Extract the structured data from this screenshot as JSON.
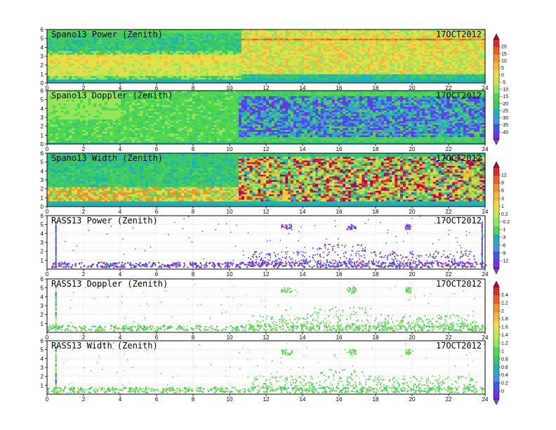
{
  "figure": {
    "date_label": "17OCT2012"
  },
  "chart_data": [
    {
      "type": "heatmap",
      "title": "Spano13 Power (Zenith)",
      "xlim": [
        0,
        24
      ],
      "ylim": [
        0,
        6
      ],
      "x_ticks": [
        0,
        2,
        4,
        6,
        8,
        10,
        12,
        14,
        16,
        18,
        20,
        22,
        24
      ],
      "y_ticks": [
        0,
        1,
        2,
        3,
        4,
        5,
        6
      ],
      "colorbar": "cb1",
      "pattern": "power_spano"
    },
    {
      "type": "heatmap",
      "title": "Spano13 Doppler (Zenith)",
      "xlim": [
        0,
        24
      ],
      "ylim": [
        0,
        6
      ],
      "x_ticks": [
        0,
        2,
        4,
        6,
        8,
        10,
        12,
        14,
        16,
        18,
        20,
        22,
        24
      ],
      "y_ticks": [
        0,
        1,
        2,
        3,
        4,
        5,
        6
      ],
      "colorbar": "cb1",
      "pattern": "doppler_spano"
    },
    {
      "type": "heatmap",
      "title": "Spano13 Width (Zenith)",
      "xlim": [
        0,
        24
      ],
      "ylim": [
        0,
        6
      ],
      "x_ticks": [
        0,
        2,
        4,
        6,
        8,
        10,
        12,
        14,
        16,
        18,
        20,
        22,
        24
      ],
      "y_ticks": [
        0,
        1,
        2,
        3,
        4,
        5,
        6
      ],
      "colorbar": "cb2",
      "pattern": "width_spano"
    },
    {
      "type": "heatmap",
      "title": "RASS13 Power (Zenith)",
      "xlim": [
        0,
        24
      ],
      "ylim": [
        0,
        6
      ],
      "x_ticks": [
        0,
        2,
        4,
        6,
        8,
        10,
        12,
        14,
        16,
        18,
        20,
        22,
        24
      ],
      "y_ticks": [
        1,
        2,
        3,
        4,
        5,
        6
      ],
      "colorbar": "cb2",
      "pattern": "rass_power"
    },
    {
      "type": "heatmap",
      "title": "RASS13 Doppler (Zenith)",
      "xlim": [
        0,
        24
      ],
      "ylim": [
        0,
        6
      ],
      "x_ticks": [
        0,
        2,
        4,
        6,
        8,
        10,
        12,
        14,
        16,
        18,
        20,
        22,
        24
      ],
      "y_ticks": [
        1,
        2,
        3,
        4,
        5,
        6
      ],
      "colorbar": "cb3",
      "pattern": "rass_doppler"
    },
    {
      "type": "heatmap",
      "title": "RASS13 Width (Zenith)",
      "xlim": [
        0,
        24
      ],
      "ylim": [
        0,
        6
      ],
      "x_ticks": [
        0,
        2,
        4,
        6,
        8,
        10,
        12,
        14,
        16,
        18,
        20,
        22,
        24
      ],
      "y_ticks": [
        1,
        2,
        3,
        4,
        5,
        6
      ],
      "colorbar": "cb3",
      "pattern": "rass_width"
    }
  ],
  "colorbars": [
    {
      "id": "cb1",
      "labels": [
        "20",
        "15",
        "10",
        "5",
        "0",
        "-5",
        "-10",
        "-15",
        "-20",
        "-25",
        "-30",
        "-35",
        "-40"
      ],
      "colors": [
        "#b4005a",
        "#dc2a2a",
        "#ee5a28",
        "#f5912d",
        "#f5b937",
        "#eedc46",
        "#c8e650",
        "#96e65a",
        "#50d750",
        "#3cc864",
        "#1eb4b4",
        "#4696dc",
        "#3c5ae6",
        "#6e32e6",
        "#9632d2"
      ]
    },
    {
      "id": "cb2",
      "labels": [
        "12",
        "9",
        "6",
        "3",
        "1",
        "0.2",
        "-0.2",
        "-1",
        "-3",
        "-6",
        "-9",
        "-12"
      ],
      "colors": [
        "#b4005a",
        "#dc2a2a",
        "#ee5a28",
        "#f5912d",
        "#f5b937",
        "#eedc46",
        "#c8e650",
        "#96e65a",
        "#50d750",
        "#1eb4b4",
        "#4696dc",
        "#3c5ae6",
        "#6e32e6",
        "#9632d2"
      ]
    },
    {
      "id": "cb3",
      "labels": [
        "2.4",
        "2.2",
        "2",
        "1.8",
        "1.6",
        "1.4",
        "1.2",
        "1",
        "0.8",
        "0.6",
        "0.4",
        "0.2",
        "0"
      ],
      "colors": [
        "#b4005a",
        "#dc2a2a",
        "#ee5a28",
        "#f5912d",
        "#f5b937",
        "#eedc46",
        "#c8e650",
        "#96e65a",
        "#50d750",
        "#3cc864",
        "#1eb4b4",
        "#4696dc",
        "#3c5ae6",
        "#6e32e6",
        "#9632d2"
      ]
    }
  ]
}
